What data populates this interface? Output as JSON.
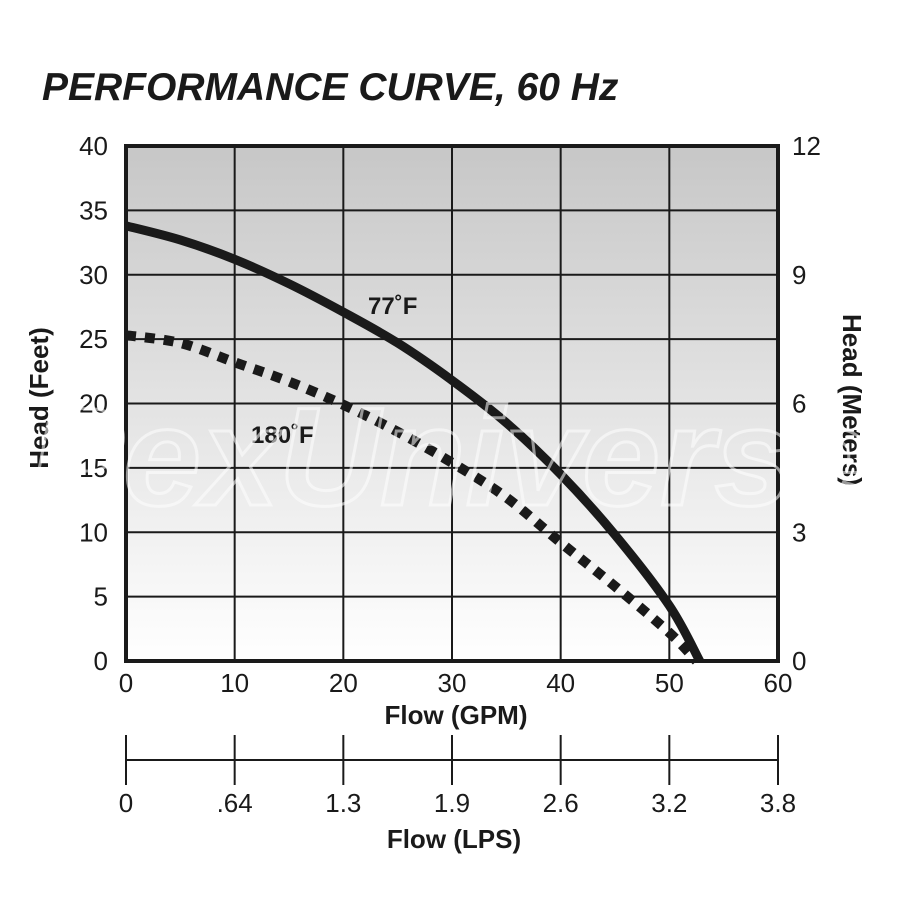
{
  "title": "PERFORMANCE CURVE, 60 Hz",
  "watermark": "PexUniverse",
  "chart_data": {
    "type": "line",
    "title": "PERFORMANCE CURVE, 60 Hz",
    "xlabel": "Flow (GPM)",
    "ylabel": "Head (Feet)",
    "y2label": "Head (Meters)",
    "x2label": "Flow (LPS)",
    "xlim": [
      0,
      60
    ],
    "ylim": [
      0,
      40
    ],
    "y2lim": [
      0,
      12
    ],
    "grid": true,
    "x_ticks": [
      "0",
      "10",
      "20",
      "30",
      "40",
      "50",
      "60"
    ],
    "y_ticks": [
      "0",
      "5",
      "10",
      "15",
      "20",
      "25",
      "30",
      "35",
      "40"
    ],
    "y2_ticks": [
      "0",
      "3",
      "6",
      "9",
      "12"
    ],
    "x2_ticks": [
      "0",
      ".64",
      "1.3",
      "1.9",
      "2.6",
      "3.2",
      "3.8"
    ],
    "series": [
      {
        "name": "77˚F",
        "style": "solid",
        "color": "#1a1a1a",
        "x": [
          0,
          5,
          10,
          15,
          20,
          25,
          30,
          35,
          40,
          45,
          50,
          52.8
        ],
        "y": [
          33.8,
          32.7,
          31.2,
          29.3,
          27.1,
          24.7,
          21.8,
          18.5,
          14.5,
          9.8,
          4.3,
          0
        ]
      },
      {
        "name": "180˚F",
        "style": "dotted",
        "color": "#1a1a1a",
        "x": [
          0,
          5,
          10,
          15,
          20,
          25,
          30,
          35,
          40,
          45,
          50,
          52.5
        ],
        "y": [
          25.3,
          24.7,
          23.2,
          21.7,
          19.9,
          17.8,
          15.4,
          12.7,
          9.2,
          5.8,
          2.2,
          0
        ]
      }
    ]
  }
}
